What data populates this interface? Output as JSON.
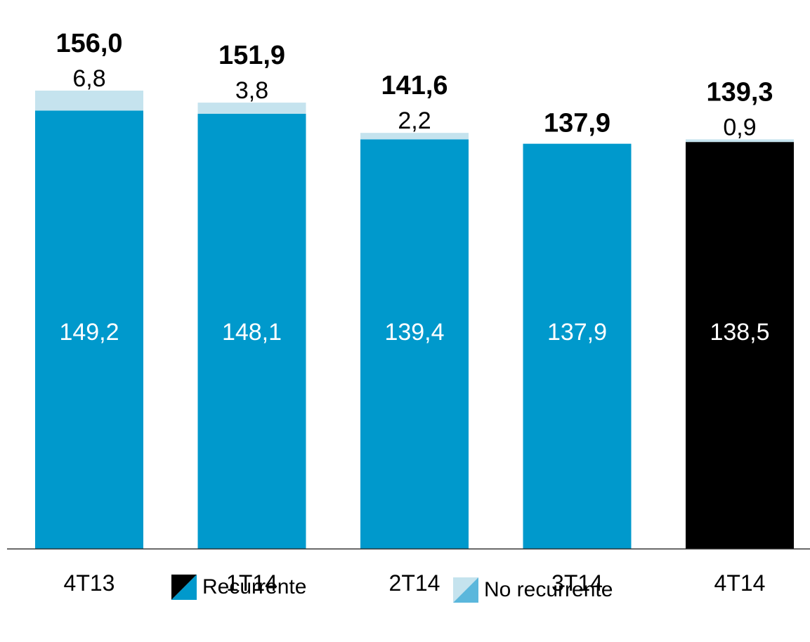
{
  "chart_data": {
    "type": "bar",
    "stacked": true,
    "categories": [
      "4T13",
      "1T14",
      "2T14",
      "3T14",
      "4T14"
    ],
    "series": [
      {
        "name": "Recurrente",
        "values": [
          149.2,
          148.1,
          139.4,
          137.9,
          138.5
        ],
        "labels": [
          "149,2",
          "148,1",
          "139,4",
          "137,9",
          "138,5"
        ],
        "colors": [
          "#0099CC",
          "#0099CC",
          "#0099CC",
          "#0099CC",
          "#000000"
        ]
      },
      {
        "name": "No recurrente",
        "values": [
          6.8,
          3.8,
          2.2,
          0,
          0.9
        ],
        "labels": [
          "6,8",
          "3,8",
          "2,2",
          "",
          "0,9"
        ],
        "color": "#C5E3EE"
      }
    ],
    "totals": [
      156.0,
      151.9,
      141.6,
      137.9,
      139.3
    ],
    "total_labels": [
      "156,0",
      "151,9",
      "141,6",
      "137,9",
      "139,3"
    ],
    "title": "",
    "xlabel": "",
    "ylabel": "",
    "ylim": [
      0,
      156.0
    ],
    "grid": false,
    "legend_position": "bottom"
  },
  "legend": {
    "recurrente": "Recurrente",
    "no_recurrente": "No recurrente"
  },
  "colors": {
    "recurrente": "#0099CC",
    "no_recurrente": "#C5E3EE",
    "highlight": "#000000",
    "axis": "#333333"
  }
}
